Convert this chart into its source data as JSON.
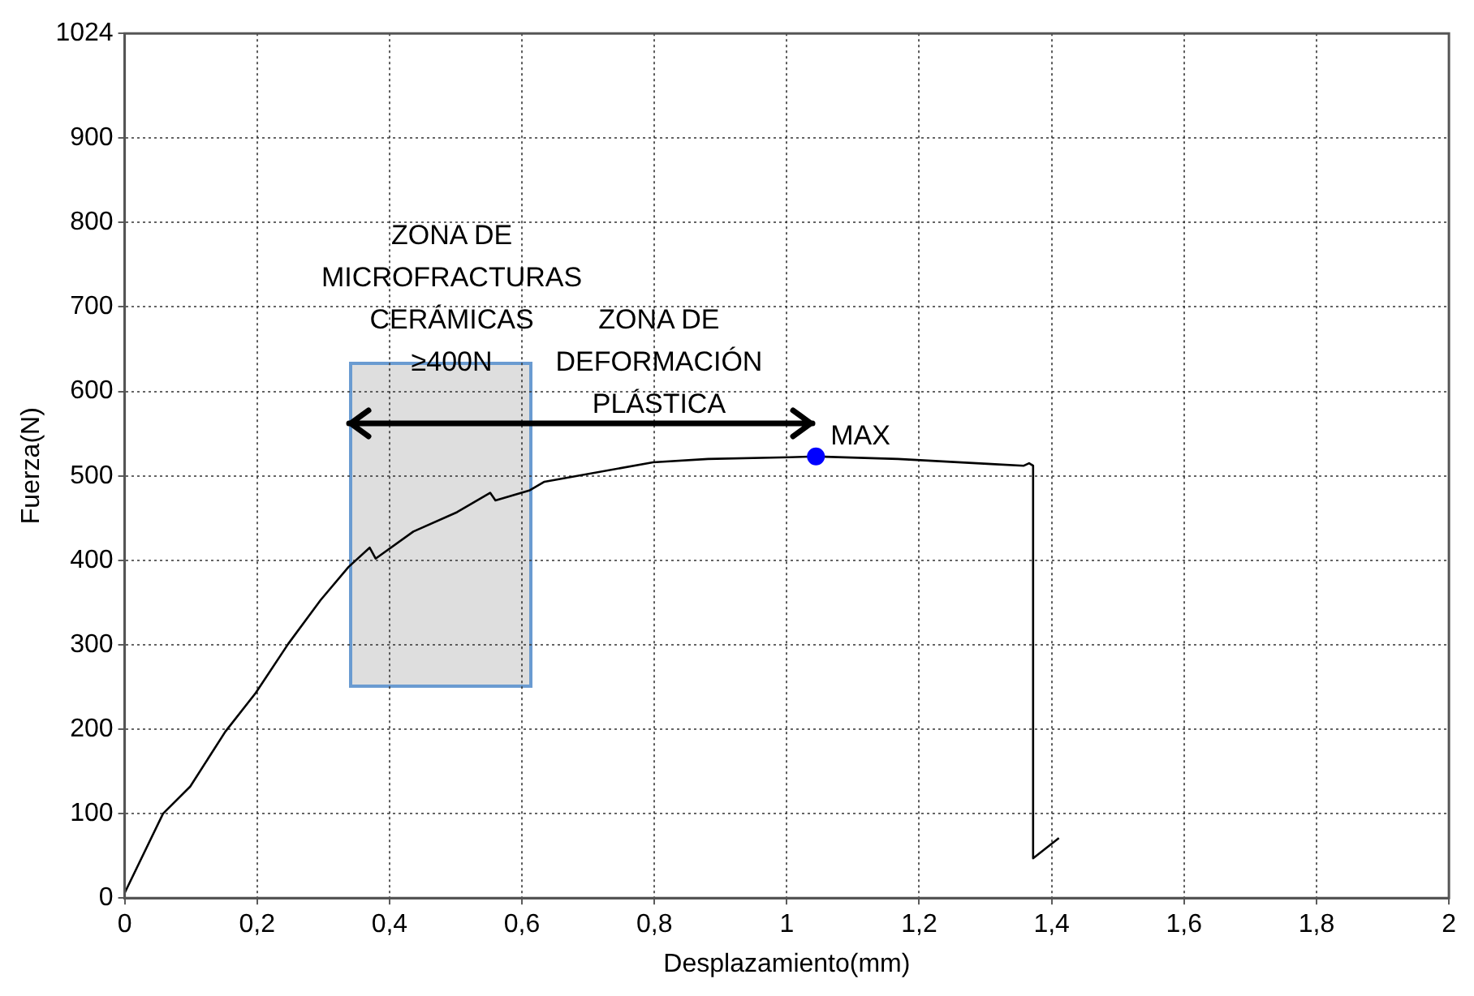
{
  "chart_data": {
    "type": "line",
    "xlabel": "Desplazamiento(mm)",
    "ylabel": "Fuerza(N)",
    "xlim": [
      0,
      2
    ],
    "ylim": [
      0,
      1024
    ],
    "xticks": [
      0,
      {
        "value": 0.2,
        "label": "0,2"
      },
      {
        "value": 0.4,
        "label": "0,4"
      },
      {
        "value": 0.6,
        "label": "0,6"
      },
      {
        "value": 0.8,
        "label": "0,8"
      },
      1,
      {
        "value": 1.2,
        "label": "1,2"
      },
      {
        "value": 1.4,
        "label": "1,4"
      },
      {
        "value": 1.6,
        "label": "1,6"
      },
      {
        "value": 1.8,
        "label": "1,8"
      },
      2
    ],
    "yticks": [
      0,
      100,
      200,
      300,
      400,
      500,
      600,
      700,
      800,
      900,
      1024
    ],
    "grid": true,
    "legend": false,
    "line_style": "solid",
    "series": [
      {
        "marker": "none",
        "color": "#000000",
        "x": [
          0,
          0.058,
          0.099,
          0.152,
          0.198,
          0.247,
          0.296,
          0.338,
          0.37,
          0.379,
          0.436,
          0.502,
          0.552,
          0.56,
          0.612,
          0.634,
          0.798,
          0.881,
          1.004,
          1.044,
          1.168,
          1.309,
          1.358,
          1.366,
          1.372,
          1.372,
          1.411
        ],
        "values": [
          6,
          100,
          132,
          197,
          243,
          301,
          353,
          392,
          415,
          402,
          434,
          457,
          480,
          471,
          483,
          493,
          516,
          520,
          522,
          523,
          520,
          514,
          512,
          515,
          512,
          47,
          71
        ]
      },
      {
        "type": "scatter",
        "marker": "circle",
        "color": "#0000ff",
        "x": [
          1.044
        ],
        "values": [
          523
        ]
      }
    ],
    "annotations": [
      "ZONA DE\nMICROFRACTURAS\nCERÁMICAS\n≥400N",
      "ZONA DE\nDEFORMACIÓN\nPLÁSTICA",
      {
        "text": "MAX",
        "x": 1.044,
        "y": 523
      }
    ]
  }
}
